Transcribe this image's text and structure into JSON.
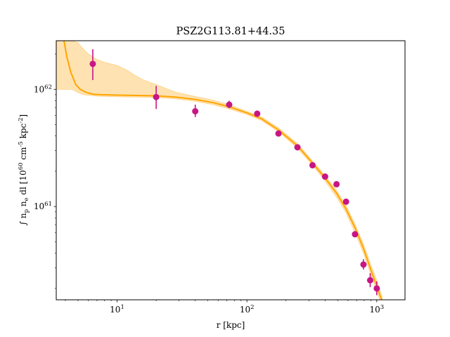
{
  "chart_data": {
    "type": "scatter",
    "title": "PSZ2G113.81+44.35",
    "xlabel": "r [kpc]",
    "ylabel": "∫ n_p n_e dl [10^60 cm^-5 kpc^-2]",
    "xscale": "log",
    "yscale": "log",
    "xlim": [
      3.4,
      1650
    ],
    "ylim": [
      1.6e+60,
      2.6e+62
    ],
    "x_ticks": [
      {
        "value": 10,
        "label": "10",
        "exp": "1"
      },
      {
        "value": 100,
        "label": "10",
        "exp": "2"
      },
      {
        "value": 1000,
        "label": "10",
        "exp": "3"
      }
    ],
    "y_ticks": [
      {
        "value": 1e+61,
        "label": "10",
        "exp": "61"
      },
      {
        "value": 1e+62,
        "label": "10",
        "exp": "62"
      }
    ],
    "grid": false,
    "legend": "none",
    "colors": {
      "points": "#c71585",
      "model": "#ffa500",
      "band": "#ffdfa8"
    },
    "series": [
      {
        "kind": "points-with-errorbars",
        "x": [
          6.5,
          20,
          40,
          73,
          120,
          175,
          245,
          320,
          400,
          490,
          580,
          680,
          790,
          890,
          1000
        ],
        "y": [
          1.65e+62,
          8.6e+61,
          6.5e+61,
          7.4e+61,
          6.2e+61,
          4.2e+61,
          3.2e+61,
          2.25e+61,
          1.8e+61,
          1.55e+61,
          1.1e+61,
          5.8e+60,
          3.2e+60,
          2.35e+60,
          2e+60
        ],
        "yerr_low": [
          1.2e+62,
          6.8e+61,
          5.8e+61,
          6.9e+61,
          5.9e+61,
          4.05e+61,
          3.05e+61,
          2.18e+61,
          1.74e+61,
          1.5e+61,
          1.06e+61,
          5.55e+60,
          2.9e+60,
          2.05e+60,
          1.75e+60
        ],
        "yerr_high": [
          2.2e+62,
          1.07e+62,
          7.4e+61,
          8e+61,
          6.5e+61,
          4.35e+61,
          3.35e+61,
          2.32e+61,
          1.86e+61,
          1.6e+61,
          1.14e+61,
          6.05e+60,
          3.55e+60,
          2.7e+60,
          2.3e+60
        ]
      },
      {
        "kind": "model-line",
        "x": [
          3.9,
          4.1,
          4.4,
          4.8,
          5.2,
          5.8,
          6.5,
          7.5,
          9,
          12,
          16,
          20,
          28,
          40,
          55,
          73,
          100,
          130,
          175,
          245,
          320,
          400,
          490,
          580,
          680,
          790,
          890,
          1000,
          1100
        ],
        "y": [
          2.6e+62,
          1.9e+62,
          1.4e+62,
          1.1e+62,
          1e+62,
          9.4e+61,
          9.1e+61,
          9e+61,
          8.95e+61,
          8.9e+61,
          8.85e+61,
          8.8e+61,
          8.6e+61,
          8.2e+61,
          7.7e+61,
          7.1e+61,
          6.3e+61,
          5.6e+61,
          4.5e+61,
          3.3e+61,
          2.35e+61,
          1.75e+61,
          1.3e+61,
          9.5e+60,
          6.6e+60,
          4.4e+60,
          3e+60,
          2.1e+60,
          1.55e+60
        ]
      },
      {
        "kind": "confidence-band",
        "x": [
          3.4,
          4,
          4.5,
          5,
          5.5,
          6,
          7,
          8,
          10,
          12,
          14,
          16,
          20,
          28,
          40,
          55,
          73,
          100,
          130,
          175,
          245,
          320,
          400,
          490,
          580,
          680,
          790,
          890,
          1000,
          1100
        ],
        "y_low": [
          1e+62,
          1e+62,
          1e+62,
          9.4e+61,
          9e+61,
          8.9e+61,
          8.75e+61,
          8.7e+61,
          8.65e+61,
          8.6e+61,
          8.6e+61,
          8.55e+61,
          8.5e+61,
          8.3e+61,
          7.9e+61,
          7.4e+61,
          6.8e+61,
          6.1e+61,
          5.4e+61,
          4.35e+61,
          3.15e+61,
          2.25e+61,
          1.65e+61,
          1.2e+61,
          8.8e+60,
          6e+60,
          4e+60,
          2.7e+60,
          1.9e+60,
          1.4e+60
        ],
        "y_high": [
          2.6e+62,
          2.6e+62,
          2.6e+62,
          2.5e+62,
          2.2e+62,
          2e+62,
          1.8e+62,
          1.7e+62,
          1.6e+62,
          1.45e+62,
          1.3e+62,
          1.2e+62,
          1.1e+62,
          9.5e+61,
          8.7e+61,
          8.1e+61,
          7.4e+61,
          6.5e+61,
          5.8e+61,
          4.7e+61,
          3.45e+61,
          2.45e+61,
          1.85e+61,
          1.38e+61,
          1.02e+61,
          7.1e+60,
          4.8e+60,
          3.3e+60,
          2.35e+60,
          1.7e+60
        ]
      }
    ]
  }
}
